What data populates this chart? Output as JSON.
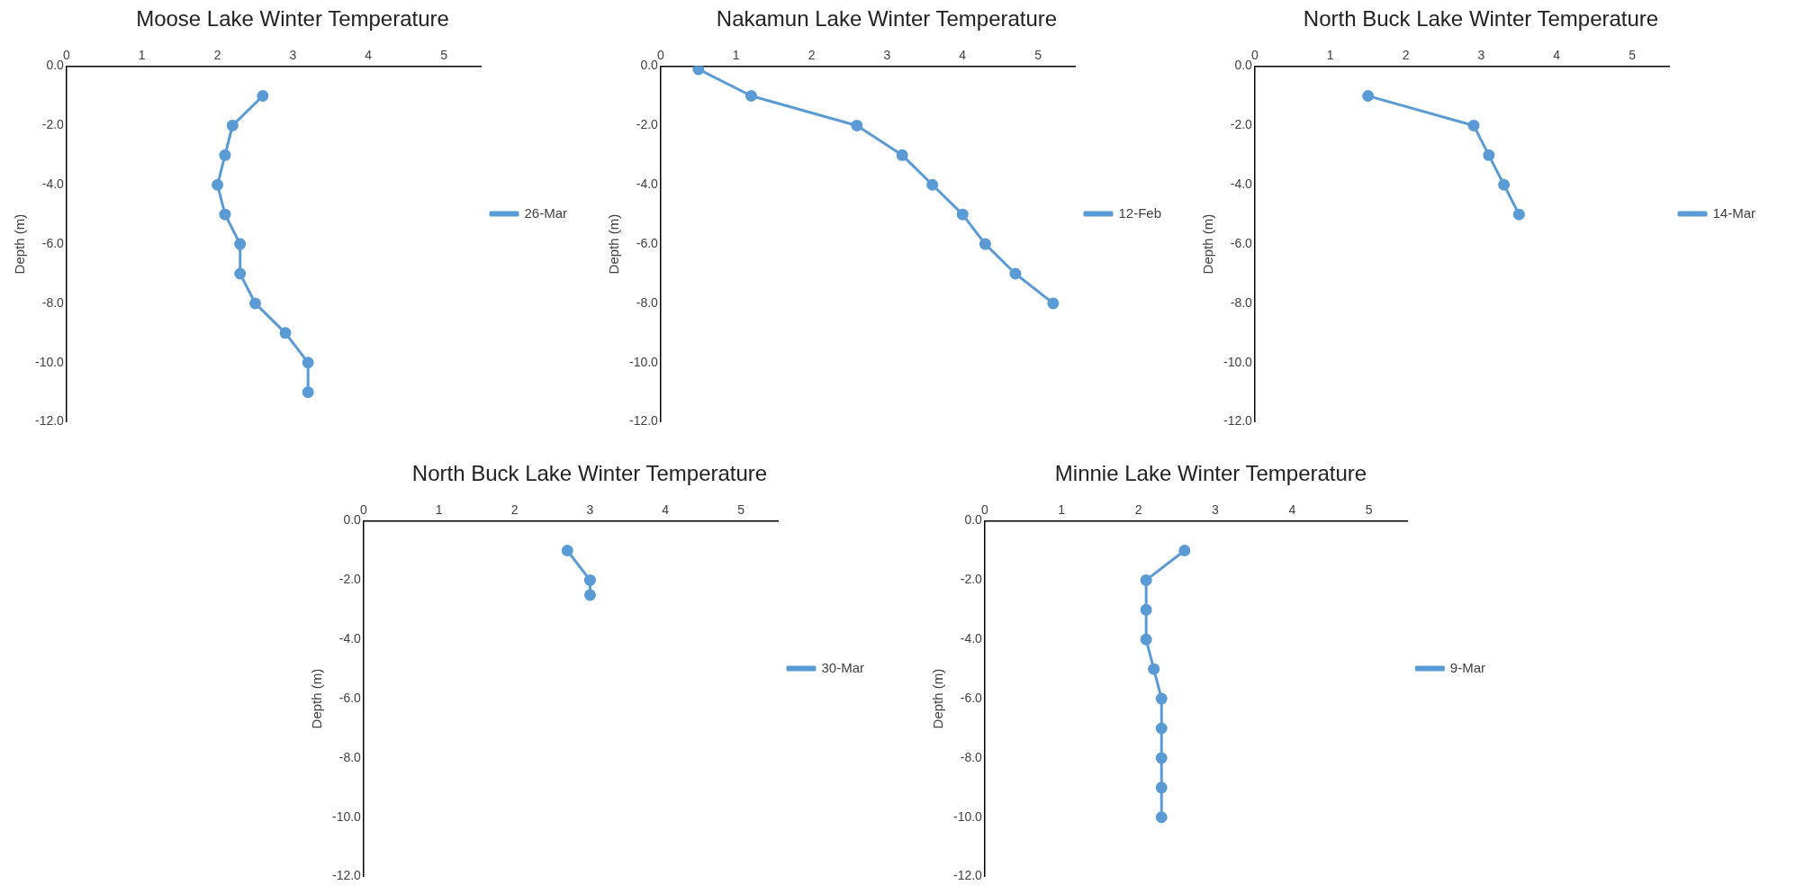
{
  "chart_data": [
    {
      "type": "line",
      "title": "Moose Lake Winter Temperature",
      "ylabel": "Depth (m)",
      "xlim": [
        0,
        5.5
      ],
      "xticks": [
        0,
        1,
        2,
        3,
        4,
        5
      ],
      "ylim": [
        -12,
        0
      ],
      "yticks": [
        {
          "value": 0,
          "label": "0.0"
        },
        {
          "value": -2,
          "label": "-2.0"
        },
        {
          "value": -4,
          "label": "-4.0"
        },
        {
          "value": -6,
          "label": "-6.0"
        },
        {
          "value": -8,
          "label": "-8.0"
        },
        {
          "value": -10,
          "label": "-10.0"
        },
        {
          "value": -12,
          "label": "-12.0"
        }
      ],
      "marker": "circle",
      "legend": "right",
      "grid": false,
      "series": [
        {
          "name": "26-Mar",
          "color": "#5b9bd5",
          "x": [
            2.6,
            2.2,
            2.1,
            2.0,
            2.1,
            2.3,
            2.3,
            2.5,
            2.9,
            3.2,
            3.2
          ],
          "values": [
            -1,
            -2,
            -3,
            -4,
            -5,
            -6,
            -7,
            -8,
            -9,
            -10,
            -11
          ]
        }
      ]
    },
    {
      "type": "line",
      "title": "Nakamun Lake Winter Temperature",
      "ylabel": "Depth (m)",
      "xlim": [
        0,
        5.5
      ],
      "xticks": [
        0,
        1,
        2,
        3,
        4,
        5
      ],
      "ylim": [
        -12,
        0
      ],
      "yticks": [
        {
          "value": 0,
          "label": "0.0"
        },
        {
          "value": -2,
          "label": "-2.0"
        },
        {
          "value": -4,
          "label": "-4.0"
        },
        {
          "value": -6,
          "label": "-6.0"
        },
        {
          "value": -8,
          "label": "-8.0"
        },
        {
          "value": -10,
          "label": "-10.0"
        },
        {
          "value": -12,
          "label": "-12.0"
        }
      ],
      "marker": "circle",
      "legend": "right",
      "grid": false,
      "series": [
        {
          "name": "12-Feb",
          "color": "#5b9bd5",
          "x": [
            0.5,
            1.2,
            2.6,
            3.2,
            3.6,
            4.0,
            4.3,
            4.7,
            5.2
          ],
          "values": [
            -0.1,
            -1,
            -2,
            -3,
            -4,
            -5,
            -6,
            -7,
            -8
          ]
        }
      ]
    },
    {
      "type": "line",
      "title": "North Buck Lake Winter Temperature",
      "ylabel": "Depth (m)",
      "xlim": [
        0,
        5.5
      ],
      "xticks": [
        0,
        1,
        2,
        3,
        4,
        5
      ],
      "ylim": [
        -12,
        0
      ],
      "yticks": [
        {
          "value": 0,
          "label": "0.0"
        },
        {
          "value": -2,
          "label": "-2.0"
        },
        {
          "value": -4,
          "label": "-4.0"
        },
        {
          "value": -6,
          "label": "-6.0"
        },
        {
          "value": -8,
          "label": "-8.0"
        },
        {
          "value": -10,
          "label": "-10.0"
        },
        {
          "value": -12,
          "label": "-12.0"
        }
      ],
      "marker": "circle",
      "legend": "right",
      "grid": false,
      "series": [
        {
          "name": "14-Mar",
          "color": "#5b9bd5",
          "x": [
            1.5,
            2.9,
            3.1,
            3.3,
            3.5
          ],
          "values": [
            -1,
            -2,
            -3,
            -4,
            -5
          ]
        }
      ]
    },
    {
      "type": "line",
      "title": "North Buck Lake Winter Temperature",
      "ylabel": "Depth (m)",
      "xlim": [
        0,
        5.5
      ],
      "xticks": [
        0,
        1,
        2,
        3,
        4,
        5
      ],
      "ylim": [
        -12,
        0
      ],
      "yticks": [
        {
          "value": 0,
          "label": "0.0"
        },
        {
          "value": -2,
          "label": "-2.0"
        },
        {
          "value": -4,
          "label": "-4.0"
        },
        {
          "value": -6,
          "label": "-6.0"
        },
        {
          "value": -8,
          "label": "-8.0"
        },
        {
          "value": -10,
          "label": "-10.0"
        },
        {
          "value": -12,
          "label": "-12.0"
        }
      ],
      "marker": "circle",
      "legend": "right",
      "grid": false,
      "series": [
        {
          "name": "30-Mar",
          "color": "#5b9bd5",
          "x": [
            2.7,
            3.0,
            3.0
          ],
          "values": [
            -1,
            -2,
            -2.5
          ]
        }
      ]
    },
    {
      "type": "line",
      "title": "Minnie Lake Winter Temperature",
      "ylabel": "Depth (m)",
      "xlim": [
        0,
        5.5
      ],
      "xticks": [
        0,
        1,
        2,
        3,
        4,
        5
      ],
      "ylim": [
        -12,
        0
      ],
      "yticks": [
        {
          "value": 0,
          "label": "0.0"
        },
        {
          "value": -2,
          "label": "-2.0"
        },
        {
          "value": -4,
          "label": "-4.0"
        },
        {
          "value": -6,
          "label": "-6.0"
        },
        {
          "value": -8,
          "label": "-8.0"
        },
        {
          "value": -10,
          "label": "-10.0"
        },
        {
          "value": -12,
          "label": "-12.0"
        }
      ],
      "marker": "circle",
      "legend": "right",
      "grid": false,
      "series": [
        {
          "name": "9-Mar",
          "color": "#5b9bd5",
          "x": [
            2.6,
            2.1,
            2.1,
            2.1,
            2.2,
            2.3,
            2.3,
            2.3,
            2.3,
            2.3
          ],
          "values": [
            -1,
            -2,
            -3,
            -4,
            -5,
            -6,
            -7,
            -8,
            -9,
            -10
          ]
        }
      ]
    }
  ]
}
